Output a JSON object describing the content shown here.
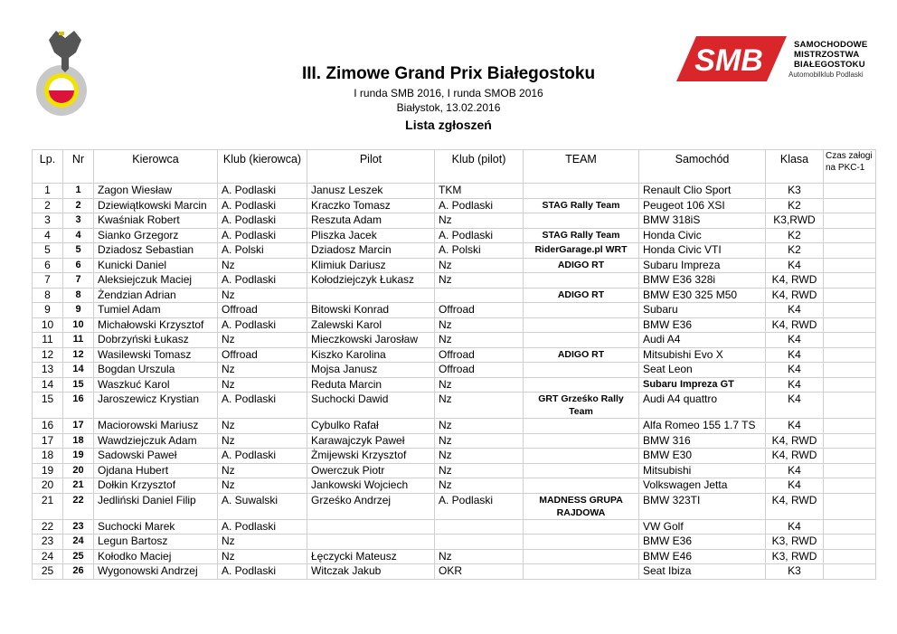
{
  "header": {
    "title": "III. Zimowe Grand Prix Białegostoku",
    "subtitle": "I runda SMB 2016, I runda SMOB 2016",
    "place_date": "Białystok, 13.02.2016",
    "list_title": "Lista zgłoszeń",
    "logo_left": "AUTOMOBILKLUB PODLASKI",
    "logo_right": {
      "mark": "SMB",
      "line1": "SAMOCHODOWE",
      "line2": "MISTRZOSTWA",
      "line3": "BIAŁEGOSTOKU",
      "sub": "Automobilklub Podlaski"
    }
  },
  "colors": {
    "smb_red": "#d9262b",
    "flag_red": "#dc143c",
    "ring_yellow": "#f2e200"
  },
  "table": {
    "headers": [
      "Lp.",
      "Nr",
      "Kierowca",
      "Klub (kierowca)",
      "Pilot",
      "Klub (pilot)",
      "TEAM",
      "Samochód",
      "Klasa",
      "Czas załogi na  PKC-1"
    ],
    "rows": [
      {
        "lp": "1",
        "nr": "1",
        "driver": "Zagon Wiesław",
        "club": "A. Podlaski",
        "pilot": "Janusz Leszek",
        "pclub": "TKM",
        "team": "",
        "car": "Renault Clio Sport",
        "cls": "K3"
      },
      {
        "lp": "2",
        "nr": "2",
        "driver": "Dziewiątkowski Marcin",
        "club": "A. Podlaski",
        "pilot": "Kraczko Tomasz",
        "pclub": "A. Podlaski",
        "team": "STAG Rally Team",
        "car": "Peugeot 106 XSI",
        "cls": "K2"
      },
      {
        "lp": "3",
        "nr": "3",
        "driver": "Kwaśniak Robert",
        "club": "A. Podlaski",
        "pilot": "Reszuta Adam",
        "pclub": "Nz",
        "team": "",
        "car": "BMW 318iS",
        "cls": "K3,RWD"
      },
      {
        "lp": "4",
        "nr": "4",
        "driver": "Sianko Grzegorz",
        "club": "A. Podlaski",
        "pilot": "Pliszka Jacek",
        "pclub": "A. Podlaski",
        "team": "STAG Rally Team",
        "car": "Honda Civic",
        "cls": "K2"
      },
      {
        "lp": "5",
        "nr": "5",
        "driver": "Dziadosz Sebastian",
        "club": "A. Polski",
        "pilot": "Dziadosz Marcin",
        "pclub": "A. Polski",
        "team": "RiderGarage.pl WRT",
        "car": "Honda Civic VTI",
        "cls": "K2"
      },
      {
        "lp": "6",
        "nr": "6",
        "driver": "Kunicki Daniel",
        "club": "Nz",
        "pilot": "Klimiuk Dariusz",
        "pclub": "Nz",
        "team": "ADIGO RT",
        "car": "Subaru Impreza",
        "cls": "K4"
      },
      {
        "lp": "7",
        "nr": "7",
        "driver": "Aleksiejczuk Maciej",
        "club": "A. Podlaski",
        "pilot": "Kołodziejczyk Łukasz",
        "pclub": "Nz",
        "team": "",
        "car": "BMW E36 328i",
        "cls": "K4, RWD"
      },
      {
        "lp": "8",
        "nr": "8",
        "driver": "Żendzian Adrian",
        "club": "Nz",
        "pilot": "",
        "pclub": "",
        "team": "ADIGO RT",
        "car": "BMW E30 325 M50",
        "cls": "K4, RWD"
      },
      {
        "lp": "9",
        "nr": "9",
        "driver": "Tumiel Adam",
        "club": "Offroad",
        "pilot": "Bitowski Konrad",
        "pclub": "Offroad",
        "team": "",
        "car": "Subaru",
        "cls": "K4"
      },
      {
        "lp": "10",
        "nr": "10",
        "driver": "Michałowski Krzysztof",
        "club": "A. Podlaski",
        "pilot": "Zalewski Karol",
        "pclub": "Nz",
        "team": "",
        "car": "BMW E36",
        "cls": "K4, RWD"
      },
      {
        "lp": "11",
        "nr": "11",
        "driver": "Dobrzyński Łukasz",
        "club": "Nz",
        "pilot": "Mieczkowski Jarosław",
        "pclub": "Nz",
        "team": "",
        "car": "Audi A4",
        "cls": "K4"
      },
      {
        "lp": "12",
        "nr": "12",
        "driver": "Wasilewski  Tomasz",
        "club": "Offroad",
        "pilot": "Kiszko Karolina",
        "pclub": "Offroad",
        "team": "ADIGO RT",
        "car": "Mitsubishi Evo X",
        "cls": "K4"
      },
      {
        "lp": "13",
        "nr": "14",
        "driver": "Bogdan Urszula",
        "club": "Nz",
        "pilot": "Mojsa Janusz",
        "pclub": "Offroad",
        "team": "",
        "car": "Seat Leon",
        "cls": "K4"
      },
      {
        "lp": "14",
        "nr": "15",
        "driver": "Waszkuć Karol",
        "club": "Nz",
        "pilot": "Reduta Marcin",
        "pclub": "Nz",
        "team": "",
        "car": "Subaru Impreza GT",
        "cls": "K4",
        "car_bold": true
      },
      {
        "lp": "15",
        "nr": "16",
        "driver": "Jaroszewicz Krystian",
        "club": "A. Podlaski",
        "pilot": "Suchocki Dawid",
        "pclub": "Nz",
        "team": "GRT Grześko Rally Team",
        "car": "Audi A4 quattro",
        "cls": "K4",
        "tall": true
      },
      {
        "lp": "16",
        "nr": "17",
        "driver": "Maciorowski Mariusz",
        "club": "Nz",
        "pilot": "Cybulko Rafał",
        "pclub": "Nz",
        "team": "",
        "car": "Alfa Romeo 155 1.7 TS",
        "cls": "K4"
      },
      {
        "lp": "17",
        "nr": "18",
        "driver": "Wawdziejczuk Adam",
        "club": "Nz",
        "pilot": "Karawajczyk Paweł",
        "pclub": "Nz",
        "team": "",
        "car": "BMW 316",
        "cls": "K4, RWD"
      },
      {
        "lp": "18",
        "nr": "19",
        "driver": "Sadowski Paweł",
        "club": "A. Podlaski",
        "pilot": "Żmijewski Krzysztof",
        "pclub": "Nz",
        "team": "",
        "car": "BMW E30",
        "cls": "K4, RWD"
      },
      {
        "lp": "19",
        "nr": "20",
        "driver": "Ojdana Hubert",
        "club": "Nz",
        "pilot": "Owerczuk Piotr",
        "pclub": "Nz",
        "team": "",
        "car": "Mitsubishi",
        "cls": "K4"
      },
      {
        "lp": "20",
        "nr": "21",
        "driver": "Dołkin Krzysztof",
        "club": "Nz",
        "pilot": "Jankowski Wojciech",
        "pclub": "Nz",
        "team": "",
        "car": "Volkswagen Jetta",
        "cls": "K4"
      },
      {
        "lp": "21",
        "nr": "22",
        "driver": "Jedliński Daniel Filip",
        "club": "A. Suwalski",
        "pilot": "Grześko Andrzej",
        "pclub": "A. Podlaski",
        "team": "MADNESS GRUPA RAJDOWA",
        "car": "BMW 323TI",
        "cls": "K4, RWD",
        "tall": true
      },
      {
        "lp": "22",
        "nr": "23",
        "driver": "Suchocki Marek",
        "club": "A. Podlaski",
        "pilot": "",
        "pclub": "",
        "team": "",
        "car": "VW Golf",
        "cls": "K4"
      },
      {
        "lp": "23",
        "nr": "24",
        "driver": "Legun Bartosz",
        "club": "Nz",
        "pilot": "",
        "pclub": "",
        "team": "",
        "car": "BMW E36",
        "cls": "K3, RWD"
      },
      {
        "lp": "24",
        "nr": "25",
        "driver": "Kołodko Maciej",
        "club": "Nz",
        "pilot": "Łęczycki Mateusz",
        "pclub": "Nz",
        "team": "",
        "car": "BMW E46",
        "cls": "K3, RWD"
      },
      {
        "lp": "25",
        "nr": "26",
        "driver": "Wygonowski Andrzej",
        "club": "A. Podlaski",
        "pilot": "Witczak Jakub",
        "pclub": "OKR",
        "team": "",
        "car": "Seat Ibiza",
        "cls": "K3"
      }
    ]
  }
}
